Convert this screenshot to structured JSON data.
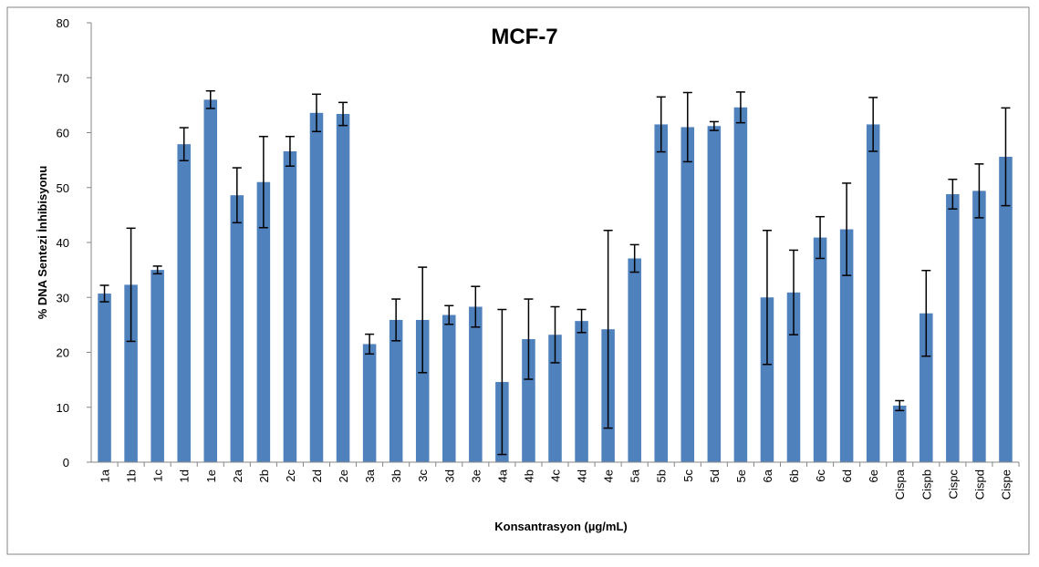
{
  "chart_data": {
    "type": "bar",
    "title": "MCF-7",
    "x_label": "Konsantrasyon  (µg/mL)",
    "y_label": "% DNA Sentezi İnhibisyonu",
    "categories": [
      "1a",
      "1b",
      "1c",
      "1d",
      "1e",
      "2a",
      "2b",
      "2c",
      "2d",
      "2e",
      "3a",
      "3b",
      "3c",
      "3d",
      "3e",
      "4a",
      "4b",
      "4c",
      "4d",
      "4e",
      "5a",
      "5b",
      "5c",
      "5d",
      "5e",
      "6a",
      "6b",
      "6c",
      "6d",
      "6e",
      "Cispa",
      "Cispb",
      "Cispc",
      "Cispd",
      "Cispe"
    ],
    "values": [
      30.7,
      32.3,
      35,
      57.9,
      66,
      48.6,
      51,
      56.6,
      63.6,
      63.4,
      21.5,
      25.9,
      25.9,
      26.8,
      28.3,
      14.6,
      22.4,
      23.2,
      25.7,
      24.2,
      37.1,
      61.5,
      61,
      61.2,
      64.6,
      30,
      30.9,
      40.9,
      42.4,
      61.5,
      10.3,
      27.1,
      48.8,
      49.4,
      55.6
    ],
    "errors": [
      1.5,
      10.3,
      0.7,
      3,
      1.6,
      5,
      8.3,
      2.7,
      3.4,
      2.1,
      1.8,
      3.8,
      9.6,
      1.7,
      3.7,
      13.2,
      7.3,
      5.1,
      2.1,
      18,
      2.5,
      5,
      6.3,
      0.8,
      2.8,
      12.2,
      7.7,
      3.8,
      8.4,
      4.9,
      0.9,
      7.8,
      2.7,
      4.9,
      8.9
    ],
    "color": "#4f81bd",
    "ylim": [
      0,
      80
    ],
    "yticks": [
      0,
      10,
      20,
      30,
      40,
      50,
      60,
      70,
      80
    ],
    "grid": false
  }
}
